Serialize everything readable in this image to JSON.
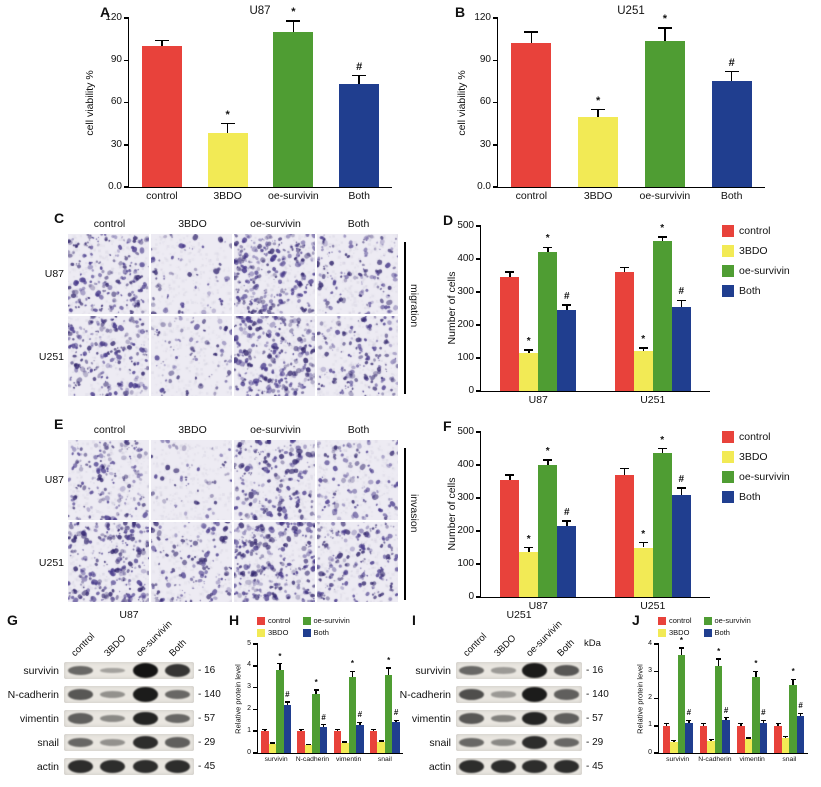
{
  "colors": {
    "control": "#e8423b",
    "3BDO": "#f2ea55",
    "oe-survivin": "#4f9d33",
    "Both": "#203e8f"
  },
  "chart_data": [
    {
      "id": "A",
      "type": "bar",
      "title": "U87",
      "ylabel": "cell viability %",
      "ylim": [
        0,
        120
      ],
      "yticks": [
        0,
        30,
        60,
        90,
        120
      ],
      "ytick_labels": [
        "0.0",
        "30",
        "60",
        "90",
        "120"
      ],
      "categories": [
        "control",
        "3BDO",
        "oe-survivin",
        "Both"
      ],
      "values": [
        100,
        38,
        110,
        73
      ],
      "errors": [
        4,
        7,
        8,
        6
      ],
      "annotations": [
        "",
        "*",
        "*",
        "#"
      ]
    },
    {
      "id": "B",
      "type": "bar",
      "title": "U251",
      "ylabel": "cell viability %",
      "ylim": [
        0,
        120
      ],
      "yticks": [
        0,
        30,
        60,
        90,
        120
      ],
      "ytick_labels": [
        "0.0",
        "30",
        "60",
        "90",
        "120"
      ],
      "categories": [
        "control",
        "3BDO",
        "oe-survivin",
        "Both"
      ],
      "values": [
        102,
        50,
        104,
        75
      ],
      "errors": [
        8,
        5,
        9,
        7
      ],
      "annotations": [
        "",
        "*",
        "*",
        "#"
      ]
    },
    {
      "id": "D",
      "type": "grouped_bar",
      "title": "",
      "ylabel": "Number of cells",
      "ylim": [
        0,
        500
      ],
      "yticks": [
        0,
        100,
        200,
        300,
        400,
        500
      ],
      "categories": [
        "U87",
        "U251"
      ],
      "series": [
        {
          "name": "control",
          "values": [
            345,
            360
          ],
          "errors": [
            15,
            15
          ],
          "annotations": [
            "",
            ""
          ]
        },
        {
          "name": "3BDO",
          "values": [
            115,
            120
          ],
          "errors": [
            10,
            10
          ],
          "annotations": [
            "*",
            "*"
          ]
        },
        {
          "name": "oe-survivin",
          "values": [
            420,
            455
          ],
          "errors": [
            15,
            12
          ],
          "annotations": [
            "*",
            "*"
          ]
        },
        {
          "name": "Both",
          "values": [
            245,
            255
          ],
          "errors": [
            15,
            20
          ],
          "annotations": [
            "#",
            "#"
          ]
        }
      ],
      "legend": [
        "control",
        "3BDO",
        "oe-survivin",
        "Both"
      ]
    },
    {
      "id": "F",
      "type": "grouped_bar",
      "title": "",
      "ylabel": "Number of cells",
      "ylim": [
        0,
        500
      ],
      "yticks": [
        0,
        100,
        200,
        300,
        400,
        500
      ],
      "categories": [
        "U87",
        "U251"
      ],
      "series": [
        {
          "name": "control",
          "values": [
            355,
            370
          ],
          "errors": [
            15,
            20
          ],
          "annotations": [
            "",
            ""
          ]
        },
        {
          "name": "3BDO",
          "values": [
            135,
            150
          ],
          "errors": [
            15,
            15
          ],
          "annotations": [
            "*",
            "*"
          ]
        },
        {
          "name": "oe-survivin",
          "values": [
            400,
            435
          ],
          "errors": [
            15,
            15
          ],
          "annotations": [
            "*",
            "*"
          ]
        },
        {
          "name": "Both",
          "values": [
            215,
            310
          ],
          "errors": [
            15,
            20
          ],
          "annotations": [
            "#",
            "#"
          ]
        }
      ],
      "legend": [
        "control",
        "3BDO",
        "oe-survivin",
        "Both"
      ]
    },
    {
      "id": "H",
      "type": "grouped_bar",
      "title": "",
      "ylabel": "Relative protein level",
      "ylim": [
        0,
        5
      ],
      "yticks": [
        0,
        1,
        2,
        3,
        4,
        5
      ],
      "categories": [
        "survivin",
        "N-cadherin",
        "vimentin",
        "snail"
      ],
      "series": [
        {
          "name": "control",
          "values": [
            1,
            1,
            1,
            1
          ],
          "errors": [
            0.08,
            0.08,
            0.08,
            0.08
          ],
          "annotations": [
            "",
            "",
            "",
            ""
          ]
        },
        {
          "name": "3BDO",
          "values": [
            0.4,
            0.35,
            0.45,
            0.5
          ],
          "errors": [
            0.05,
            0.05,
            0.05,
            0.05
          ],
          "annotations": [
            "",
            "",
            "",
            ""
          ]
        },
        {
          "name": "oe-survivin",
          "values": [
            3.8,
            2.7,
            3.5,
            3.6
          ],
          "errors": [
            0.3,
            0.2,
            0.25,
            0.3
          ],
          "annotations": [
            "*",
            "*",
            "*",
            "*"
          ]
        },
        {
          "name": "Both",
          "values": [
            2.2,
            1.2,
            1.3,
            1.4
          ],
          "errors": [
            0.15,
            0.1,
            0.1,
            0.1
          ],
          "annotations": [
            "#",
            "#",
            "#",
            "#"
          ]
        }
      ],
      "legend": [
        "control",
        "3BDO",
        "oe-survivin",
        "Both"
      ]
    },
    {
      "id": "J",
      "type": "grouped_bar",
      "title": "",
      "ylabel": "Relative protein level",
      "ylim": [
        0,
        4
      ],
      "yticks": [
        0,
        1,
        2,
        3,
        4
      ],
      "categories": [
        "survivin",
        "N-cadherin",
        "vimentin",
        "snail"
      ],
      "series": [
        {
          "name": "control",
          "values": [
            1,
            1,
            1,
            1
          ],
          "errors": [
            0.08,
            0.08,
            0.08,
            0.08
          ],
          "annotations": [
            "",
            "",
            "",
            ""
          ]
        },
        {
          "name": "3BDO",
          "values": [
            0.4,
            0.45,
            0.5,
            0.55
          ],
          "errors": [
            0.05,
            0.05,
            0.05,
            0.05
          ],
          "annotations": [
            "",
            "",
            "",
            ""
          ]
        },
        {
          "name": "oe-survivin",
          "values": [
            3.6,
            3.2,
            2.8,
            2.5
          ],
          "errors": [
            0.25,
            0.25,
            0.2,
            0.2
          ],
          "annotations": [
            "*",
            "*",
            "*",
            "*"
          ]
        },
        {
          "name": "Both",
          "values": [
            1.1,
            1.2,
            1.1,
            1.35
          ],
          "errors": [
            0.1,
            0.1,
            0.1,
            0.1
          ],
          "annotations": [
            "#",
            "#",
            "#",
            "#"
          ]
        }
      ],
      "legend": [
        "control",
        "3BDO",
        "oe-survivin",
        "Both"
      ]
    }
  ],
  "panels": {
    "A": {
      "label": "A"
    },
    "B": {
      "label": "B"
    },
    "C": {
      "label": "C",
      "column_labels": [
        "control",
        "3BDO",
        "oe-survivin",
        "Both"
      ],
      "row_labels": [
        "U87",
        "U251"
      ],
      "side_label": "migration",
      "densities": [
        [
          0.7,
          0.22,
          0.95,
          0.48
        ],
        [
          0.8,
          0.3,
          1.0,
          0.55
        ]
      ]
    },
    "D": {
      "label": "D"
    },
    "E": {
      "label": "E",
      "column_labels": [
        "control",
        "3BDO",
        "oe-survivin",
        "Both"
      ],
      "row_labels": [
        "U87",
        "U251"
      ],
      "side_label": "invasion",
      "densities": [
        [
          0.55,
          0.18,
          0.75,
          0.4
        ],
        [
          0.95,
          0.5,
          1.05,
          0.65
        ]
      ]
    },
    "F": {
      "label": "F"
    },
    "G": {
      "label": "G",
      "title": "U87",
      "lane_labels": [
        "control",
        "3BDO",
        "oe-survivin",
        "Both"
      ],
      "rows": [
        {
          "protein": "survivin",
          "mw_label": "- 16",
          "intensities": [
            0.5,
            0.15,
            1.0,
            0.8
          ]
        },
        {
          "protein": "N-cadherin",
          "mw_label": "- 140",
          "intensities": [
            0.6,
            0.25,
            0.95,
            0.5
          ]
        },
        {
          "protein": "vimentin",
          "mw_label": "- 57",
          "intensities": [
            0.55,
            0.3,
            0.9,
            0.5
          ]
        },
        {
          "protein": "snail",
          "mw_label": "- 29",
          "intensities": [
            0.5,
            0.25,
            0.85,
            0.55
          ]
        },
        {
          "protein": "actin",
          "mw_label": "- 45",
          "intensities": [
            0.85,
            0.85,
            0.85,
            0.85
          ]
        }
      ]
    },
    "H": {
      "label": "H"
    },
    "I": {
      "label": "I",
      "title": "U251",
      "kda_label": "kDa",
      "lane_labels": [
        "control",
        "3BDO",
        "oe-survivin",
        "Both"
      ],
      "rows": [
        {
          "protein": "survivin",
          "mw_label": "- 16",
          "intensities": [
            0.5,
            0.2,
            0.95,
            0.6
          ]
        },
        {
          "protein": "N-cadherin",
          "mw_label": "- 140",
          "intensities": [
            0.65,
            0.2,
            0.95,
            0.55
          ]
        },
        {
          "protein": "vimentin",
          "mw_label": "- 57",
          "intensities": [
            0.6,
            0.35,
            0.9,
            0.55
          ]
        },
        {
          "protein": "snail",
          "mw_label": "- 29",
          "intensities": [
            0.5,
            0.3,
            0.85,
            0.5
          ]
        },
        {
          "protein": "actin",
          "mw_label": "- 45",
          "intensities": [
            0.85,
            0.85,
            0.85,
            0.85
          ]
        }
      ]
    },
    "J": {
      "label": "J"
    }
  }
}
